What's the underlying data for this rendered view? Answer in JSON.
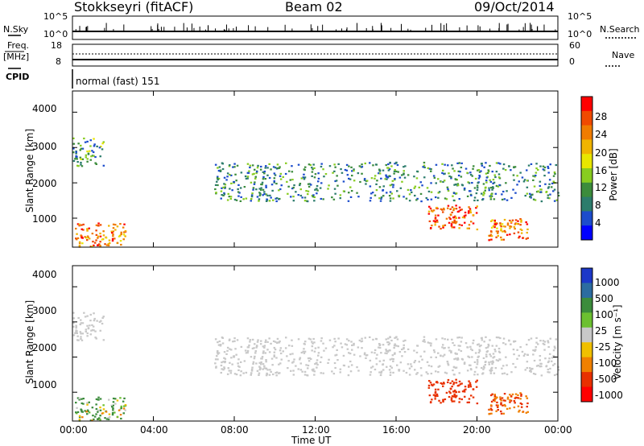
{
  "header": {
    "station": "Stokkseyri (fitACF)",
    "beam": "Beam 02",
    "date": "09/Oct/2014"
  },
  "strip_panels": {
    "nsky_label": "N.Sky",
    "nsky_ticks": [
      "10^5",
      "10^0"
    ],
    "nsearch_label": "N.Search",
    "nsearch_ticks": [
      "10^5",
      "10^0"
    ],
    "freq_label": "Freq.",
    "freq_unit": "[MHz]",
    "freq_ticks": [
      "18",
      "8"
    ],
    "nave_label": "Nave",
    "nave_ticks": [
      "60",
      "0"
    ],
    "cpid_label": "CPID",
    "cpid_value": "normal (fast) 151"
  },
  "power_panel": {
    "ylabel": "Slant Range [km]",
    "cb_label": "Power [dB]",
    "y_ticks": [
      "4000",
      "3000",
      "2000",
      "1000"
    ],
    "cb_ticks": [
      "28",
      "24",
      "20",
      "16",
      "12",
      "8",
      "4"
    ],
    "cb_colors": [
      "#ff0000",
      "#f04a00",
      "#f07c00",
      "#f0b400",
      "#e8e600",
      "#88cc20",
      "#3c8c3c",
      "#2c7c6c",
      "#1c4ccc",
      "#0000ff"
    ]
  },
  "velocity_panel": {
    "ylabel": "Slant Range [km]",
    "cb_label": "Velocity [m s⁻¹]",
    "y_ticks": [
      "4000",
      "3000",
      "2000",
      "1000"
    ],
    "cb_ticks": [
      "1000",
      "500",
      "100",
      "25",
      "-25",
      "-100",
      "-500",
      "-1000"
    ],
    "cb_colors": [
      "#1c38c8",
      "#2c6ca0",
      "#3c8c3c",
      "#6cc030",
      "#c8c8c8",
      "#f0c000",
      "#f08000",
      "#e83000",
      "#ff0000"
    ]
  },
  "x_axis": {
    "title": "Time UT",
    "ticks": [
      "00:00",
      "04:00",
      "08:00",
      "12:00",
      "16:00",
      "20:00",
      "00:00"
    ]
  },
  "chart_data": [
    {
      "type": "heatmap",
      "title": "Stokkseyri (fitACF) Beam 02 09/Oct/2014",
      "xlabel": "Time UT",
      "ylabel": "Slant Range [km]",
      "colorbar": "Power [dB]",
      "xlim": [
        0,
        24
      ],
      "ylim": [
        180,
        4600
      ],
      "clim": [
        0,
        30
      ],
      "echo_regions": [
        {
          "t_start": 0.1,
          "t_end": 2.6,
          "r_min": 200,
          "r_max": 900,
          "power": 24
        },
        {
          "t_start": 0.0,
          "t_end": 1.5,
          "r_min": 2500,
          "r_max": 3300,
          "power": 10
        },
        {
          "t_start": 7.0,
          "t_end": 24.0,
          "r_min": 1500,
          "r_max": 2600,
          "power": 8
        },
        {
          "t_start": 17.5,
          "t_end": 20.0,
          "r_min": 700,
          "r_max": 1400,
          "power": 26
        },
        {
          "t_start": 20.5,
          "t_end": 22.5,
          "r_min": 400,
          "r_max": 1000,
          "power": 24
        }
      ]
    },
    {
      "type": "heatmap",
      "title": "Stokkseyri (fitACF) Beam 02 09/Oct/2014",
      "xlabel": "Time UT",
      "ylabel": "Slant Range [km]",
      "colorbar": "Velocity [m s⁻¹]",
      "xlim": [
        0,
        24
      ],
      "ylim": [
        180,
        4600
      ],
      "clim": [
        -1000,
        1000
      ],
      "echo_regions": [
        {
          "t_start": 0.1,
          "t_end": 2.6,
          "r_min": 200,
          "r_max": 900,
          "velocity": 100
        },
        {
          "t_start": 0.0,
          "t_end": 1.5,
          "r_min": 2500,
          "r_max": 3300,
          "velocity": 0
        },
        {
          "t_start": 7.0,
          "t_end": 24.0,
          "r_min": 1500,
          "r_max": 2600,
          "velocity": 0
        },
        {
          "t_start": 17.5,
          "t_end": 20.0,
          "r_min": 700,
          "r_max": 1400,
          "velocity": -500
        },
        {
          "t_start": 20.5,
          "t_end": 22.5,
          "r_min": 400,
          "r_max": 1000,
          "velocity": -300
        }
      ]
    }
  ]
}
